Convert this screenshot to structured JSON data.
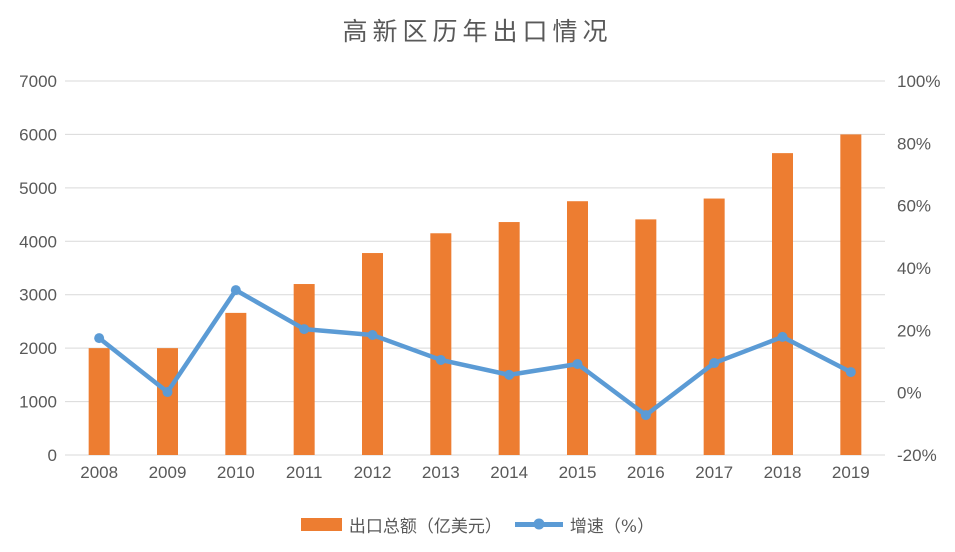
{
  "chart_data": {
    "type": "combo",
    "title": "高新区历年出口情况",
    "categories": [
      "2008",
      "2009",
      "2010",
      "2011",
      "2012",
      "2013",
      "2014",
      "2015",
      "2016",
      "2017",
      "2018",
      "2019"
    ],
    "series": [
      {
        "name": "出口总额（亿美元）",
        "type": "bar",
        "axis": "left",
        "color": "#ED7D31",
        "values": [
          2000,
          2000,
          2660,
          3200,
          3780,
          4150,
          4360,
          4750,
          4410,
          4800,
          5650,
          6000
        ]
      },
      {
        "name": "增速（%）",
        "type": "line",
        "axis": "right",
        "color": "#5B9BD5",
        "values": [
          17.5,
          0.2,
          32.9,
          20.4,
          18.5,
          10.5,
          5.7,
          9.2,
          -7.2,
          9.5,
          17.9,
          6.6
        ]
      }
    ],
    "left_axis": {
      "min": 0,
      "max": 7000,
      "step": 1000,
      "tick_values": [
        0,
        1000,
        2000,
        3000,
        4000,
        5000,
        6000,
        7000
      ],
      "tick_labels": [
        "0",
        "1000",
        "2000",
        "3000",
        "4000",
        "5000",
        "6000",
        "7000"
      ]
    },
    "right_axis": {
      "min": -20,
      "max": 100,
      "step": 20,
      "tick_values": [
        -20,
        0,
        20,
        40,
        60,
        80,
        100
      ],
      "tick_labels": [
        "-20%",
        "0%",
        "20%",
        "40%",
        "60%",
        "80%",
        "100%"
      ]
    },
    "grid": true,
    "legend_position": "bottom",
    "colors": {
      "grid": "#D9D9D9",
      "text": "#595959",
      "background": "#FFFFFF"
    }
  }
}
